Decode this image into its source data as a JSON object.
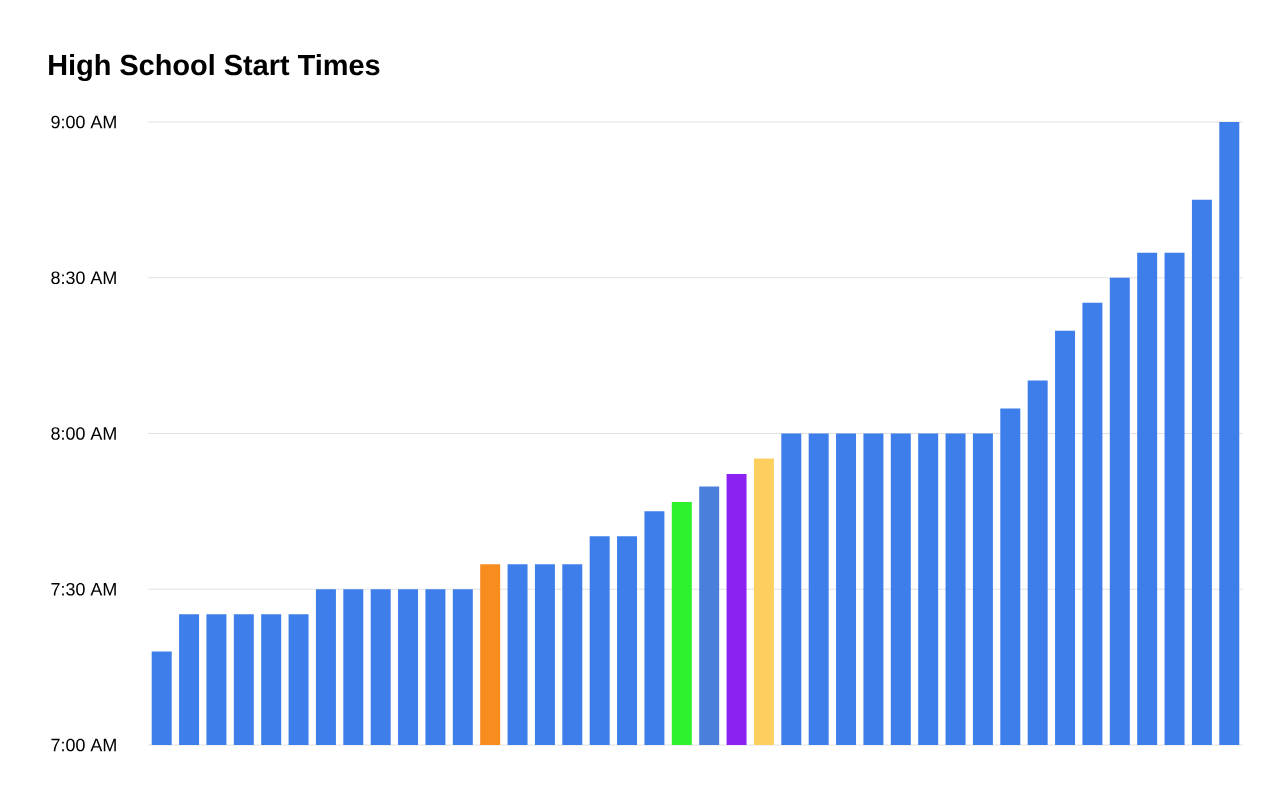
{
  "chart_data": {
    "type": "bar",
    "title": "High School Start Times",
    "categories": [
      null,
      null,
      null,
      null,
      null,
      null,
      null,
      null,
      null,
      null,
      null,
      null,
      null,
      null,
      null,
      null,
      null,
      null,
      null,
      null,
      null,
      null,
      null,
      null,
      null,
      null,
      null,
      null,
      null,
      null,
      null,
      null,
      null,
      null,
      null,
      null,
      null,
      null,
      null,
      null
    ],
    "values": [
      7.3,
      7.42,
      7.42,
      7.42,
      7.42,
      7.42,
      7.5,
      7.5,
      7.5,
      7.5,
      7.5,
      7.5,
      7.58,
      7.58,
      7.58,
      7.58,
      7.67,
      7.67,
      7.75,
      7.78,
      7.83,
      7.87,
      7.92,
      8,
      8,
      8,
      8,
      8,
      8,
      8,
      8,
      8.08,
      8.17,
      8.33,
      8.42,
      8.5,
      8.58,
      8.58,
      8.75,
      9
    ],
    "colors": [
      "#3d7eea",
      "#3d7eea",
      "#3d7eea",
      "#3d7eea",
      "#3d7eea",
      "#3d7eea",
      "#3d7eea",
      "#3d7eea",
      "#3d7eea",
      "#3d7eea",
      "#3d7eea",
      "#3d7eea",
      "#f78c1f",
      "#3d7eea",
      "#3d7eea",
      "#3d7eea",
      "#3d7eea",
      "#3d7eea",
      "#3d7eea",
      "#2ef12e",
      "#4a7fdc",
      "#8c22f2",
      "#fccf5f",
      "#3d7eea",
      "#3d7eea",
      "#3d7eea",
      "#3d7eea",
      "#3d7eea",
      "#3d7eea",
      "#3d7eea",
      "#3d7eea",
      "#3d7eea",
      "#3d7eea",
      "#3d7eea",
      "#3d7eea",
      "#3d7eea",
      "#3d7eea",
      "#3d7eea",
      "#3d7eea",
      "#3d7eea"
    ],
    "ylim": [
      7,
      9
    ],
    "yticks": [
      {
        "value": 7,
        "label": "7:00 AM"
      },
      {
        "value": 7.5,
        "label": "7:30 AM"
      },
      {
        "value": 8,
        "label": "8:00 AM"
      },
      {
        "value": 8.5,
        "label": "8:30 AM"
      },
      {
        "value": 9,
        "label": "9:00 AM"
      }
    ],
    "grid": "y"
  }
}
